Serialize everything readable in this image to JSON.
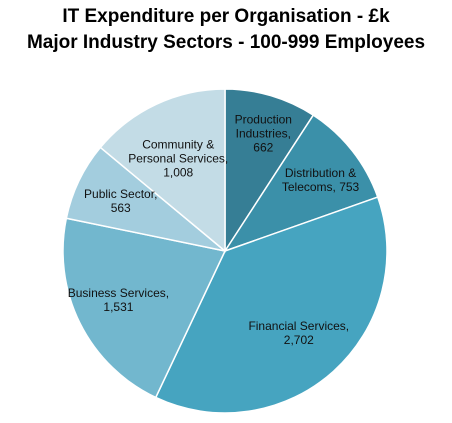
{
  "chart_data": {
    "type": "pie",
    "title": "IT Expenditure per Organisation - £k",
    "subtitle": "Major Industry Sectors - 100-999 Employees",
    "slices": [
      {
        "label": "Production Industries",
        "display_label": [
          "Production",
          "Industries,",
          "662"
        ],
        "value": 662,
        "color": "#367E95"
      },
      {
        "label": "Distribution & Telecoms",
        "display_label": [
          "Distribution &",
          "Telecoms, 753"
        ],
        "value": 753,
        "color": "#3B90A9"
      },
      {
        "label": "Financial Services",
        "display_label": [
          "Financial Services,",
          "2,702"
        ],
        "value": 2702,
        "color": "#46A4C0"
      },
      {
        "label": "Business Services",
        "display_label": [
          "Business Services,",
          "1,531"
        ],
        "value": 1531,
        "color": "#72B7CE"
      },
      {
        "label": "Public Sector",
        "display_label": [
          "Public Sector,",
          "563"
        ],
        "value": 563,
        "color": "#A3CDDE"
      },
      {
        "label": "Community & Personal Services",
        "display_label": [
          "Community &",
          "Personal Services,",
          "1,008"
        ],
        "value": 1008,
        "color": "#C3DCE6"
      }
    ],
    "start_angle_deg": 0,
    "direction": "clockwise",
    "slice_edge_color": "#FFFFFF"
  }
}
